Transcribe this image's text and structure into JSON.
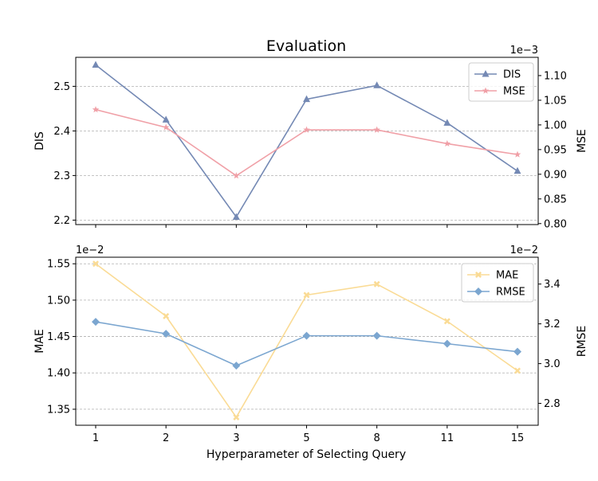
{
  "chart_data": {
    "type": "line",
    "title": "Evaluation",
    "xlabel": "Hyperparameter of Selecting Query",
    "categories": [
      "1",
      "2",
      "3",
      "5",
      "8",
      "11",
      "15"
    ],
    "top": {
      "left": {
        "name": "DIS",
        "ylabel": "DIS",
        "color": "#7489b4",
        "marker": "triangle",
        "ylim": [
          2.19,
          2.565
        ],
        "ticks": [
          2.2,
          2.3,
          2.4,
          2.5
        ],
        "tick_labels": [
          "2.2",
          "2.3",
          "2.4",
          "2.5"
        ],
        "values": [
          2.548,
          2.425,
          2.207,
          2.471,
          2.502,
          2.418,
          2.31
        ]
      },
      "right": {
        "name": "MSE",
        "ylabel": "MSE",
        "color": "#f0a0a7",
        "marker": "star",
        "offset_text": "1e−3",
        "ylim": [
          0.798,
          1.137
        ],
        "ticks": [
          0.8,
          0.85,
          0.9,
          0.95,
          1.0,
          1.05,
          1.1
        ],
        "tick_labels": [
          "0.80",
          "0.85",
          "0.90",
          "0.95",
          "1.00",
          "1.05",
          "1.10"
        ],
        "values": [
          1.031,
          0.995,
          0.897,
          0.99,
          0.99,
          0.962,
          0.94
        ]
      },
      "legend": [
        "DIS",
        "MSE"
      ]
    },
    "bottom": {
      "left": {
        "name": "MAE",
        "ylabel": "MAE",
        "color": "#fadb95",
        "marker": "x",
        "offset_text": "1e−2",
        "ylim": [
          1.328,
          1.559
        ],
        "ticks": [
          1.35,
          1.4,
          1.45,
          1.5,
          1.55
        ],
        "tick_labels": [
          "1.35",
          "1.40",
          "1.45",
          "1.50",
          "1.55"
        ],
        "values": [
          1.55,
          1.478,
          1.339,
          1.507,
          1.522,
          1.471,
          1.403
        ]
      },
      "right": {
        "name": "RMSE",
        "ylabel": "RMSE",
        "color": "#7ba6d0",
        "marker": "diamond",
        "offset_text": "1e−2",
        "ylim": [
          2.69,
          3.535
        ],
        "ticks": [
          2.8,
          3.0,
          3.2,
          3.4
        ],
        "tick_labels": [
          "2.8",
          "3.0",
          "3.2",
          "3.4"
        ],
        "values": [
          3.21,
          3.15,
          2.99,
          3.14,
          3.14,
          3.1,
          3.06
        ]
      },
      "legend": [
        "MAE",
        "RMSE"
      ]
    }
  }
}
